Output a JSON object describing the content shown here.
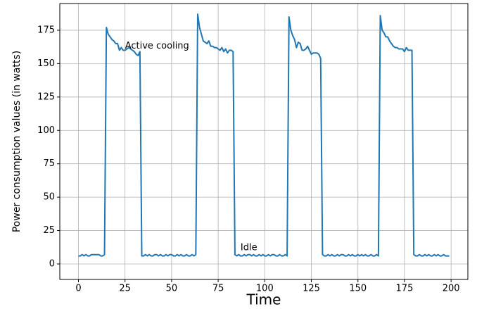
{
  "chart_data": {
    "type": "line",
    "x": [
      0,
      1,
      2,
      3,
      4,
      5,
      6,
      7,
      8,
      9,
      10,
      11,
      12,
      13,
      14,
      15,
      16,
      17,
      18,
      19,
      20,
      21,
      22,
      23,
      24,
      25,
      26,
      27,
      28,
      29,
      30,
      31,
      32,
      33,
      34,
      35,
      36,
      37,
      38,
      39,
      40,
      41,
      42,
      43,
      44,
      45,
      46,
      47,
      48,
      49,
      50,
      51,
      52,
      53,
      54,
      55,
      56,
      57,
      58,
      59,
      60,
      61,
      62,
      63,
      64,
      65,
      66,
      67,
      68,
      69,
      70,
      71,
      72,
      73,
      74,
      75,
      76,
      77,
      78,
      79,
      80,
      81,
      82,
      83,
      84,
      85,
      86,
      87,
      88,
      89,
      90,
      91,
      92,
      93,
      94,
      95,
      96,
      97,
      98,
      99,
      100,
      101,
      102,
      103,
      104,
      105,
      106,
      107,
      108,
      109,
      110,
      111,
      112,
      113,
      114,
      115,
      116,
      117,
      118,
      119,
      120,
      121,
      122,
      123,
      124,
      125,
      126,
      127,
      128,
      129,
      130,
      131,
      132,
      133,
      134,
      135,
      136,
      137,
      138,
      139,
      140,
      141,
      142,
      143,
      144,
      145,
      146,
      147,
      148,
      149,
      150,
      151,
      152,
      153,
      154,
      155,
      156,
      157,
      158,
      159,
      160,
      161,
      162,
      163,
      164,
      165,
      166,
      167,
      168,
      169,
      170,
      171,
      172,
      173,
      174,
      175,
      176,
      177,
      178,
      179,
      180,
      181,
      182,
      183,
      184,
      185,
      186,
      187,
      188,
      189,
      190,
      191,
      192,
      193,
      194,
      195,
      196,
      197,
      198,
      199
    ],
    "series": [
      {
        "color": "#1f77b4",
        "values": [
          6,
          6,
          7,
          6,
          7,
          6,
          6,
          7,
          7,
          7,
          7,
          7,
          6,
          6,
          7,
          177,
          172,
          170,
          168,
          167,
          165,
          165,
          160,
          162,
          160,
          160,
          161,
          162,
          161,
          160,
          159,
          157,
          156,
          159,
          6,
          6,
          7,
          6,
          7,
          6,
          6,
          7,
          7,
          6,
          7,
          6,
          6,
          7,
          6,
          7,
          7,
          6,
          6,
          7,
          6,
          7,
          6,
          6,
          7,
          6,
          6,
          7,
          6,
          7,
          187,
          177,
          172,
          167,
          166,
          165,
          167,
          163,
          163,
          162,
          162,
          161,
          160,
          162,
          159,
          161,
          158,
          160,
          160,
          159,
          7,
          6,
          7,
          6,
          6,
          7,
          6,
          7,
          7,
          6,
          7,
          6,
          6,
          7,
          6,
          7,
          6,
          6,
          7,
          6,
          7,
          7,
          6,
          6,
          7,
          6,
          6,
          7,
          6,
          185,
          175,
          171,
          168,
          162,
          166,
          165,
          160,
          160,
          161,
          163,
          160,
          157,
          158,
          158,
          158,
          157,
          154,
          7,
          6,
          6,
          7,
          6,
          7,
          6,
          6,
          7,
          6,
          7,
          7,
          6,
          6,
          7,
          6,
          7,
          6,
          6,
          7,
          6,
          7,
          6,
          7,
          6,
          6,
          7,
          6,
          6,
          7,
          6,
          186,
          175,
          173,
          170,
          170,
          167,
          165,
          163,
          162,
          162,
          161,
          161,
          161,
          159,
          162,
          160,
          160,
          160,
          7,
          6,
          6,
          7,
          6,
          6,
          7,
          6,
          7,
          6,
          6,
          7,
          6,
          7,
          6,
          6,
          7,
          6,
          6,
          6
        ]
      }
    ],
    "xlabel": "Time",
    "ylabel": "Power consumption values (in watts)",
    "xlim": [
      -10,
      209
    ],
    "ylim": [
      -11.6,
      195
    ],
    "xticks": [
      0,
      25,
      50,
      75,
      100,
      125,
      150,
      175,
      200
    ],
    "yticks": [
      0,
      25,
      50,
      75,
      100,
      125,
      150,
      175
    ],
    "grid": true,
    "annotations": [
      {
        "text": "Active cooling",
        "x": 25,
        "y": 163
      },
      {
        "text": "Idle",
        "x": 87,
        "y": 12
      }
    ]
  }
}
